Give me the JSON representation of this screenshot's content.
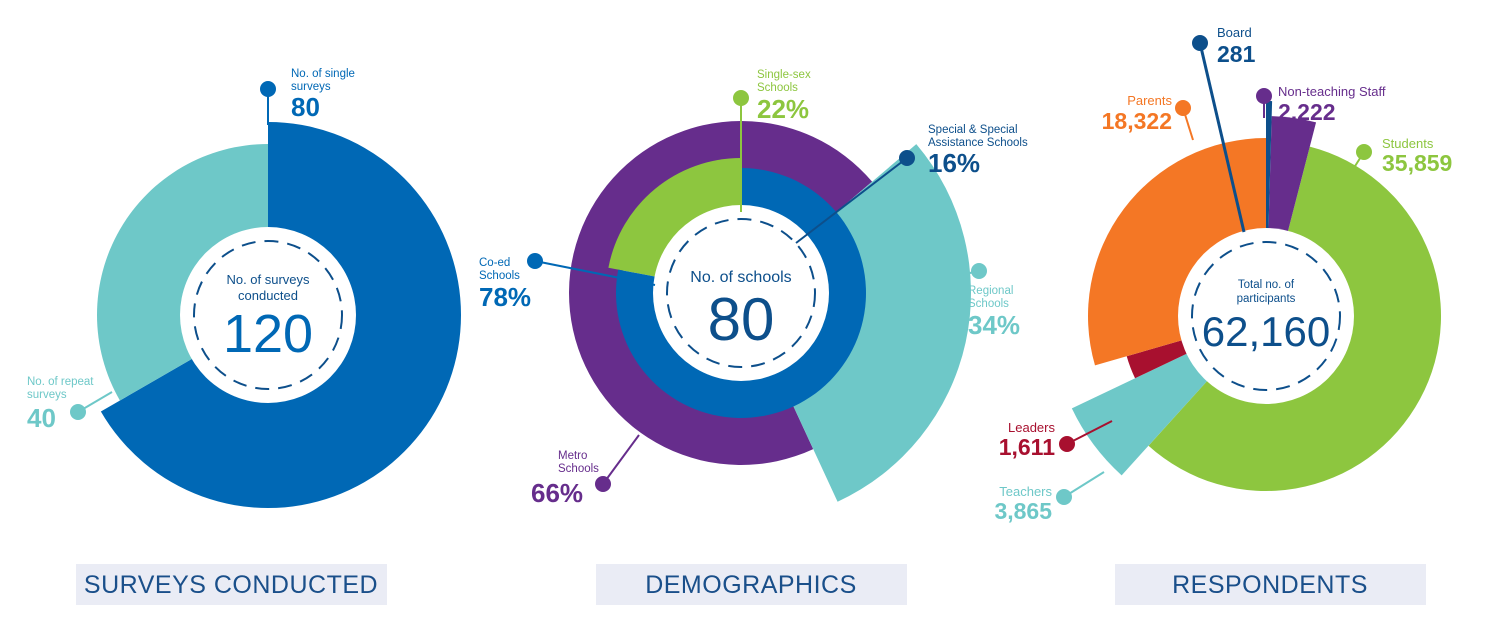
{
  "colors": {
    "dark_blue": "#0068b5",
    "navy": "#0d4f8b",
    "teal": "#6ec8c8",
    "green": "#8dc63f",
    "purple": "#662d8c",
    "orange": "#f47725",
    "crimson": "#a8102f",
    "band": "#eaecf5"
  },
  "chart_data": [
    {
      "type": "pie",
      "title": "SURVEYS CONDUCTED",
      "center_caption": "No. of surveys conducted",
      "center_value": "120",
      "slices": [
        {
          "label": "No. of single surveys",
          "value": 80,
          "display": "80",
          "color": "#0068b5"
        },
        {
          "label": "No. of repeat surveys",
          "value": 40,
          "display": "40",
          "color": "#6ec8c8"
        }
      ]
    },
    {
      "type": "pie",
      "title": "DEMOGRAPHICS",
      "center_caption": "No. of schools",
      "center_value": "80",
      "inner_ring": [
        {
          "label": "Single-sex Schools",
          "value": 22,
          "display": "22%",
          "color": "#8dc63f"
        },
        {
          "label": "Co-ed Schools",
          "value": 78,
          "display": "78%",
          "color": "#0068b5"
        }
      ],
      "outer_ring": [
        {
          "label": "Special & Special Assistance Schools",
          "value": 16,
          "display": "16%",
          "color": "#662d8c"
        },
        {
          "label": "Regional Schools",
          "value": 34,
          "display": "34%",
          "color": "#6ec8c8"
        },
        {
          "label": "Metro Schools",
          "value": 66,
          "display": "66%",
          "color": "#662d8c"
        }
      ]
    },
    {
      "type": "pie",
      "title": "RESPONDENTS",
      "center_caption": "Total no. of participants",
      "center_value": "62,160",
      "slices": [
        {
          "label": "Board",
          "value": 281,
          "display": "281",
          "color": "#0d4f8b"
        },
        {
          "label": "Non-teaching Staff",
          "value": 2222,
          "display": "2,222",
          "color": "#662d8c"
        },
        {
          "label": "Students",
          "value": 35859,
          "display": "35,859",
          "color": "#8dc63f"
        },
        {
          "label": "Teachers",
          "value": 3865,
          "display": "3,865",
          "color": "#6ec8c8"
        },
        {
          "label": "Leaders",
          "value": 1611,
          "display": "1,611",
          "color": "#a8102f"
        },
        {
          "label": "Parents",
          "value": 18322,
          "display": "18,322",
          "color": "#f47725"
        }
      ]
    }
  ]
}
